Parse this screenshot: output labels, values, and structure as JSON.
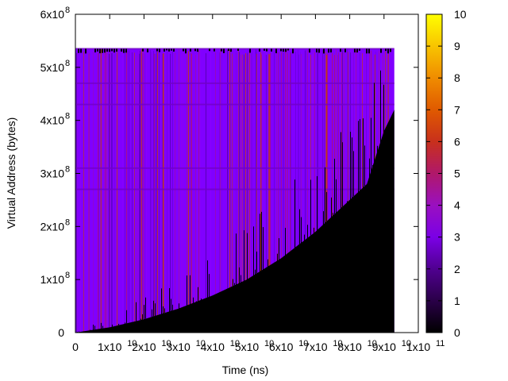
{
  "chart_data": {
    "type": "heatmap",
    "xlabel": "Time (ns)",
    "ylabel": "Virtual Address (bytes)",
    "xlim": [
      0,
      100000000000
    ],
    "ylim": [
      0,
      600000000
    ],
    "x_ticks": [
      {
        "mant": "0",
        "exp": ""
      },
      {
        "mant": "1x10",
        "exp": "10"
      },
      {
        "mant": "2x10",
        "exp": "10"
      },
      {
        "mant": "3x10",
        "exp": "10"
      },
      {
        "mant": "4x10",
        "exp": "10"
      },
      {
        "mant": "5x10",
        "exp": "10"
      },
      {
        "mant": "6x10",
        "exp": "10"
      },
      {
        "mant": "7x10",
        "exp": "10"
      },
      {
        "mant": "8x10",
        "exp": "10"
      },
      {
        "mant": "9x10",
        "exp": "10"
      },
      {
        "mant": "1x10",
        "exp": "11"
      }
    ],
    "y_ticks": [
      {
        "mant": "0",
        "exp": ""
      },
      {
        "mant": "1x10",
        "exp": "8"
      },
      {
        "mant": "2x10",
        "exp": "8"
      },
      {
        "mant": "3x10",
        "exp": "8"
      },
      {
        "mant": "4x10",
        "exp": "8"
      },
      {
        "mant": "5x10",
        "exp": "8"
      },
      {
        "mant": "6x10",
        "exp": "8"
      }
    ],
    "colorbar": {
      "range": [
        0,
        10
      ],
      "ticks": [
        "0",
        "1",
        "2",
        "3",
        "4",
        "5",
        "6",
        "7",
        "8",
        "9",
        "10"
      ]
    },
    "data_extent": {
      "x_max": 93000000000,
      "y_max": 535000000
    },
    "bands_y": [
      535000000,
      470000000,
      430000000,
      310000000,
      270000000
    ],
    "black_boundary": [
      [
        0,
        0
      ],
      [
        10000000000,
        10000000
      ],
      [
        20000000000,
        25000000
      ],
      [
        30000000000,
        45000000
      ],
      [
        40000000000,
        70000000
      ],
      [
        50000000000,
        100000000
      ],
      [
        60000000000,
        140000000
      ],
      [
        70000000000,
        190000000
      ],
      [
        80000000000,
        250000000
      ],
      [
        85000000000,
        280000000
      ],
      [
        90000000000,
        380000000
      ],
      [
        93000000000,
        420000000
      ]
    ],
    "colors": {
      "background": "#000000",
      "dominant": "#8000ff",
      "mid": "#a00070",
      "highlight": "#c04000"
    }
  }
}
